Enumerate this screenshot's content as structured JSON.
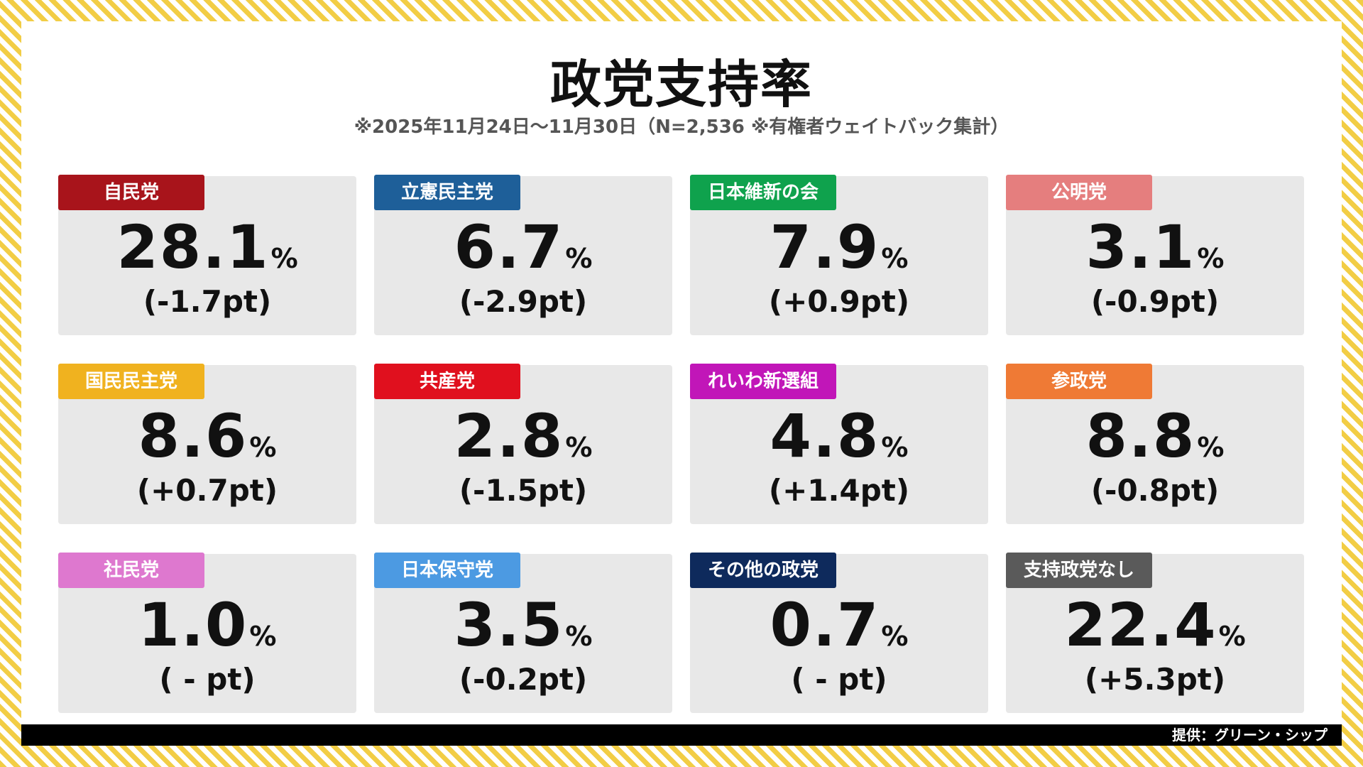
{
  "header": {
    "title": "政党支持率",
    "subtitle": "※2025年11月24日～11月30日（N=2,536 ※有権者ウェイトバック集計）"
  },
  "footer": {
    "credit": "提供：グリーン・シップ"
  },
  "chart_data": {
    "type": "table",
    "title": "政党支持率",
    "unit": "%",
    "change_unit": "pt",
    "parties": [
      {
        "name": "自民党",
        "value": "28.1",
        "change": "(-1.7pt)",
        "color": "#a8141b"
      },
      {
        "name": "立憲民主党",
        "value": "6.7",
        "change": "(-2.9pt)",
        "color": "#1e5f99"
      },
      {
        "name": "日本維新の会",
        "value": "7.9",
        "change": "(+0.9pt)",
        "color": "#0fa24d"
      },
      {
        "name": "公明党",
        "value": "3.1",
        "change": "(-0.9pt)",
        "color": "#e57e7e"
      },
      {
        "name": "国民民主党",
        "value": "8.6",
        "change": "(+0.7pt)",
        "color": "#f0b21f"
      },
      {
        "name": "共産党",
        "value": "2.8",
        "change": "(-1.5pt)",
        "color": "#e0101e"
      },
      {
        "name": "れいわ新選組",
        "value": "4.8",
        "change": "(+1.4pt)",
        "color": "#c116b8"
      },
      {
        "name": "参政党",
        "value": "8.8",
        "change": "(-0.8pt)",
        "color": "#ef7a35"
      },
      {
        "name": "社民党",
        "value": "1.0",
        "change": "( - pt)",
        "color": "#de78cf"
      },
      {
        "name": "日本保守党",
        "value": "3.5",
        "change": "(-0.2pt)",
        "color": "#4c9ae2"
      },
      {
        "name": "その他の政党",
        "value": "0.7",
        "change": "( - pt)",
        "color": "#0e2a5c"
      },
      {
        "name": "支持政党なし",
        "value": "22.4",
        "change": "(+5.3pt)",
        "color": "#5a5a5a"
      }
    ]
  }
}
